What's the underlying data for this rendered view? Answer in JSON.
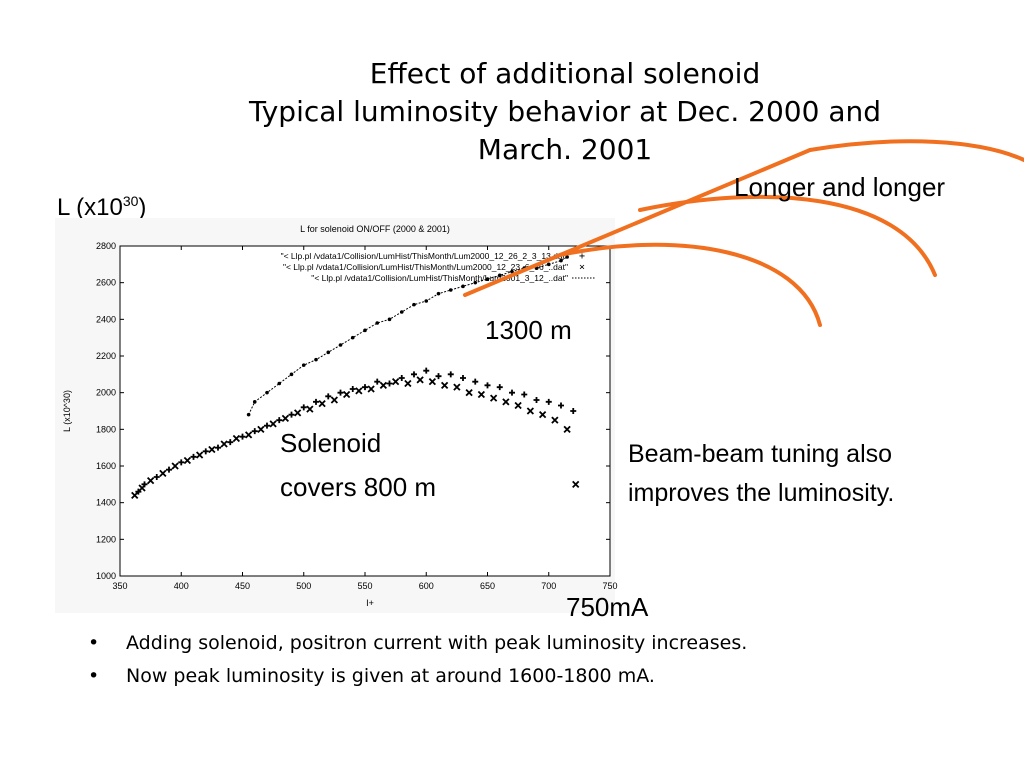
{
  "slide": {
    "title_lines": [
      "Effect of additional solenoid",
      "Typical luminosity behavior at Dec. 2000 and",
      "March. 2001"
    ],
    "y_axis_unit_label": {
      "prefix": "L (x10",
      "exponent": "30",
      "suffix": ")"
    },
    "annotations": {
      "longer": "Longer and longer",
      "distance_1300": "1300 m",
      "solenoid_line1": "Solenoid",
      "solenoid_line2": "covers 800 m",
      "beam_line1": "Beam-beam tuning also",
      "beam_line2": "improves the luminosity.",
      "current_750": "750mA"
    },
    "bullets": [
      "Adding solenoid, positron current with peak luminosity increases.",
      "Now peak luminosity is given at around 1600-1800 mA."
    ],
    "bullet_symbol": "•",
    "accent_color": "#f07020"
  },
  "chart_data": {
    "type": "scatter",
    "title": "L for solenoid ON/OFF (2000 & 2001)",
    "xlabel": "I+",
    "ylabel": "L (x10^30)",
    "xlim": [
      350,
      750
    ],
    "ylim": [
      1000,
      2800
    ],
    "x_ticks": [
      350,
      400,
      450,
      500,
      550,
      600,
      650,
      700,
      750
    ],
    "y_ticks": [
      1000,
      1200,
      1400,
      1600,
      1800,
      2000,
      2200,
      2400,
      2600,
      2800
    ],
    "legend_position": "top-right",
    "series": [
      {
        "name": "\"< Llp.pl /vdata1/Collision/LumHist/ThisMonth/Lum2000_12_26_2_3_13.dat\"",
        "marker": "+",
        "points": [
          [
            365,
            1460
          ],
          [
            370,
            1500
          ],
          [
            380,
            1540
          ],
          [
            390,
            1580
          ],
          [
            400,
            1620
          ],
          [
            410,
            1650
          ],
          [
            420,
            1680
          ],
          [
            430,
            1700
          ],
          [
            440,
            1730
          ],
          [
            450,
            1760
          ],
          [
            460,
            1790
          ],
          [
            470,
            1820
          ],
          [
            480,
            1850
          ],
          [
            490,
            1880
          ],
          [
            500,
            1920
          ],
          [
            510,
            1950
          ],
          [
            520,
            1980
          ],
          [
            530,
            2000
          ],
          [
            540,
            2020
          ],
          [
            550,
            2030
          ],
          [
            560,
            2060
          ],
          [
            570,
            2050
          ],
          [
            580,
            2080
          ],
          [
            590,
            2100
          ],
          [
            600,
            2120
          ],
          [
            610,
            2090
          ],
          [
            620,
            2100
          ],
          [
            630,
            2080
          ],
          [
            640,
            2060
          ],
          [
            650,
            2040
          ],
          [
            660,
            2030
          ],
          [
            670,
            2000
          ],
          [
            680,
            1990
          ],
          [
            690,
            1960
          ],
          [
            700,
            1950
          ],
          [
            710,
            1930
          ],
          [
            720,
            1900
          ]
        ]
      },
      {
        "name": "\"< Llp.pl /vdata1/Collision/LumHist/ThisMonth/Lum2000_12_23_6_56_..dat\"",
        "marker": "x",
        "points": [
          [
            362,
            1440
          ],
          [
            368,
            1480
          ],
          [
            375,
            1520
          ],
          [
            385,
            1560
          ],
          [
            395,
            1600
          ],
          [
            405,
            1630
          ],
          [
            415,
            1660
          ],
          [
            425,
            1690
          ],
          [
            435,
            1720
          ],
          [
            445,
            1750
          ],
          [
            455,
            1770
          ],
          [
            465,
            1800
          ],
          [
            475,
            1830
          ],
          [
            485,
            1860
          ],
          [
            495,
            1890
          ],
          [
            505,
            1910
          ],
          [
            515,
            1940
          ],
          [
            525,
            1960
          ],
          [
            535,
            1990
          ],
          [
            545,
            2010
          ],
          [
            555,
            2020
          ],
          [
            565,
            2040
          ],
          [
            575,
            2060
          ],
          [
            585,
            2050
          ],
          [
            595,
            2070
          ],
          [
            605,
            2060
          ],
          [
            615,
            2040
          ],
          [
            625,
            2030
          ],
          [
            635,
            2000
          ],
          [
            645,
            1990
          ],
          [
            655,
            1970
          ],
          [
            665,
            1950
          ],
          [
            675,
            1930
          ],
          [
            685,
            1900
          ],
          [
            695,
            1880
          ],
          [
            705,
            1850
          ],
          [
            715,
            1800
          ],
          [
            722,
            1500
          ]
        ]
      },
      {
        "name": "\"< Llp.pl /vdata1/Collision/LumHist/ThisMonth/Lum2001_3_12_..dat\"",
        "marker": "dot",
        "points": [
          [
            455,
            1880
          ],
          [
            460,
            1950
          ],
          [
            470,
            2000
          ],
          [
            480,
            2050
          ],
          [
            490,
            2100
          ],
          [
            500,
            2150
          ],
          [
            510,
            2180
          ],
          [
            520,
            2220
          ],
          [
            530,
            2260
          ],
          [
            540,
            2300
          ],
          [
            550,
            2340
          ],
          [
            560,
            2380
          ],
          [
            570,
            2400
          ],
          [
            580,
            2440
          ],
          [
            590,
            2480
          ],
          [
            600,
            2500
          ],
          [
            610,
            2540
          ],
          [
            620,
            2560
          ],
          [
            630,
            2580
          ],
          [
            640,
            2600
          ],
          [
            650,
            2620
          ],
          [
            660,
            2640
          ],
          [
            670,
            2660
          ],
          [
            680,
            2680
          ],
          [
            690,
            2680
          ],
          [
            700,
            2700
          ],
          [
            710,
            2720
          ],
          [
            715,
            2740
          ]
        ]
      }
    ]
  }
}
